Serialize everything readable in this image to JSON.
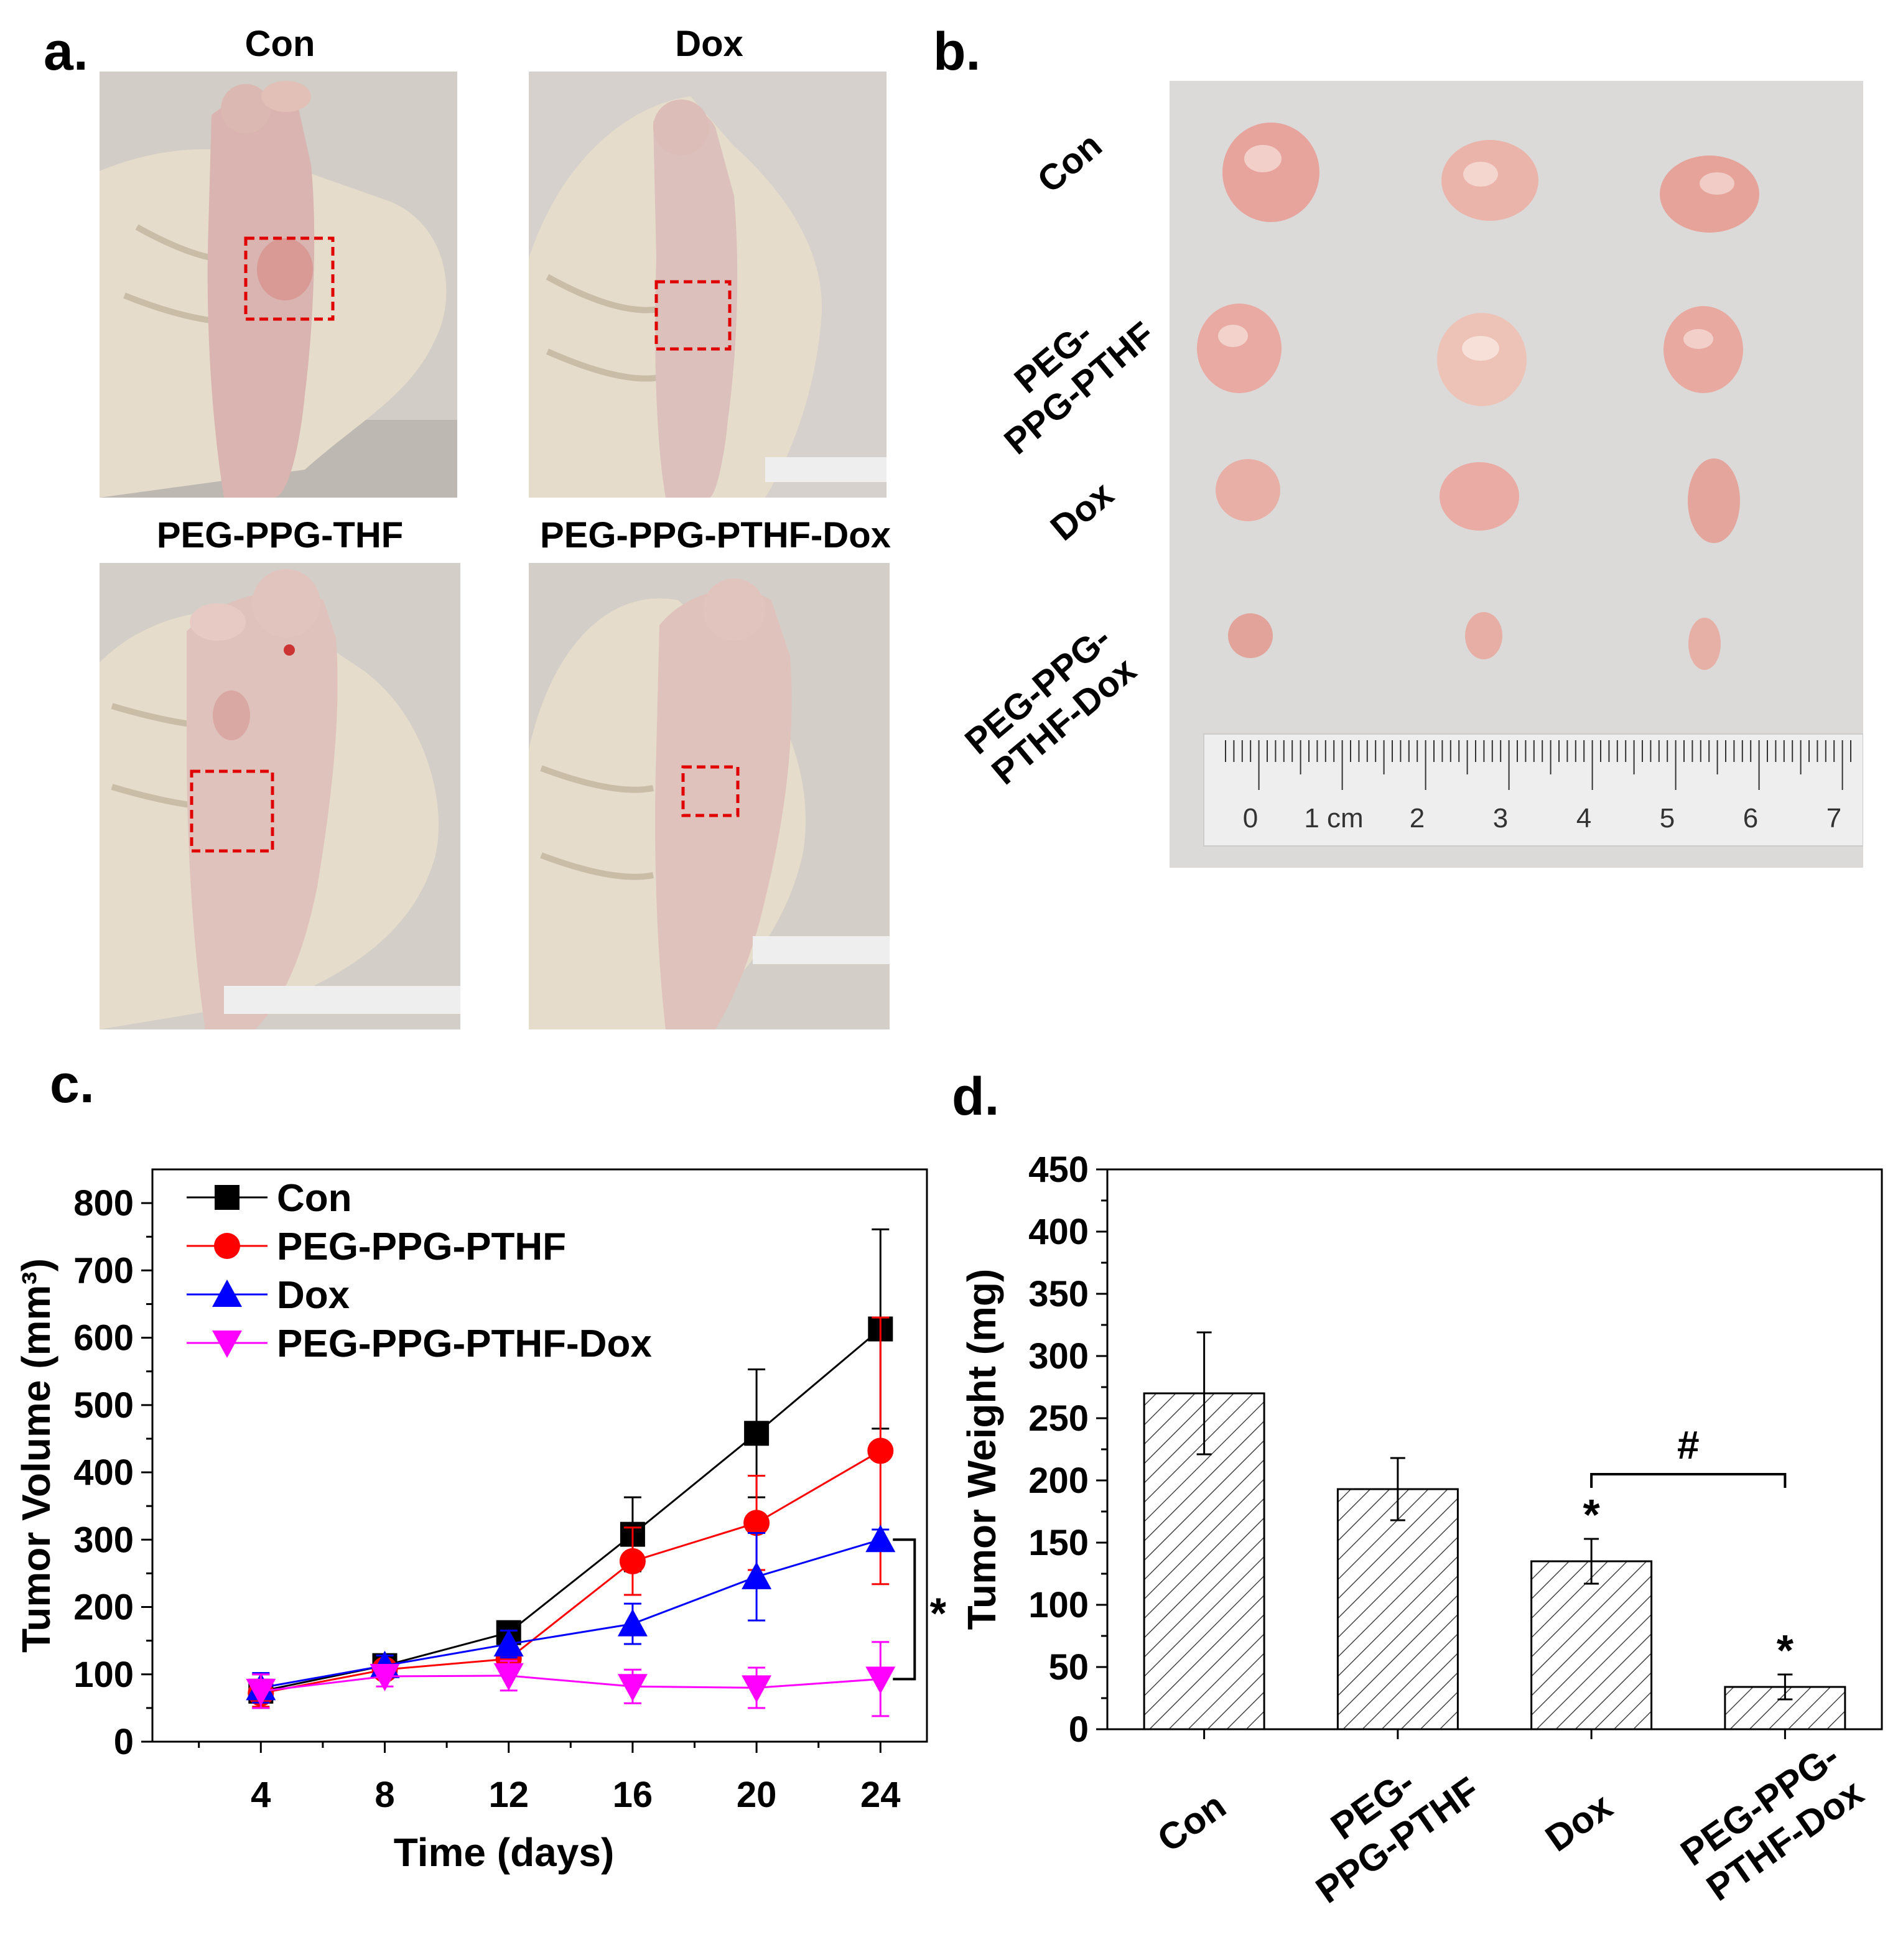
{
  "panel_a": {
    "letter": "a.",
    "photos": [
      {
        "title": "Con"
      },
      {
        "title": "Dox"
      },
      {
        "title": "PEG-PPG-THF"
      },
      {
        "title": "PEG-PPG-PTHF-Dox"
      }
    ]
  },
  "panel_b": {
    "letter": "b.",
    "row_labels": [
      {
        "lines": [
          "Con"
        ]
      },
      {
        "lines": [
          "PEG-",
          "PPG-PTHF"
        ]
      },
      {
        "lines": [
          "Dox"
        ]
      },
      {
        "lines": [
          "PEG-PPG-",
          "PTHF-Dox"
        ]
      }
    ],
    "ruler_labels": [
      "0",
      "1 cm",
      "2",
      "3",
      "4",
      "5",
      "6",
      "7"
    ]
  },
  "panel_c": {
    "letter": "c.",
    "significance": "*"
  },
  "panel_d": {
    "letter": "d.",
    "significance": {
      "star": "*",
      "hash": "#"
    }
  },
  "colors": {
    "con": "#000000",
    "peg_pthf": "#ff0000",
    "dox": "#0000ff",
    "peg_pthf_dox": "#ff00ff",
    "tumor": "#e8a59e",
    "glove": "#e6dccb"
  },
  "chart_data": [
    {
      "id": "c",
      "type": "line",
      "xlabel": "Time (days)",
      "ylabel": "Tumor Volume (mm³)",
      "x": [
        4,
        8,
        12,
        16,
        20,
        24
      ],
      "xlim": [
        0.5,
        25.5
      ],
      "ylim": [
        0,
        850
      ],
      "xticks": [
        4,
        8,
        12,
        16,
        20,
        24
      ],
      "yticks": [
        0,
        100,
        200,
        300,
        400,
        500,
        600,
        700,
        800
      ],
      "legend": "top-left",
      "series": [
        {
          "name": "Con",
          "marker": "square",
          "color": "#000000",
          "values": [
            75,
            113,
            162,
            308,
            458,
            613
          ],
          "errors": [
            25,
            12,
            15,
            55,
            95,
            148
          ]
        },
        {
          "name": "PEG-PPG-PTHF",
          "marker": "circle",
          "color": "#ff0000",
          "values": [
            72,
            107,
            123,
            268,
            325,
            432
          ],
          "errors": [
            20,
            12,
            15,
            50,
            70,
            198
          ]
        },
        {
          "name": "Dox",
          "marker": "triangle-up",
          "color": "#0000ff",
          "values": [
            80,
            113,
            145,
            175,
            245,
            300
          ],
          "errors": [
            22,
            15,
            20,
            30,
            65,
            15
          ]
        },
        {
          "name": "PEG-PPG-PTHF-Dox",
          "marker": "triangle-down",
          "color": "#ff00ff",
          "values": [
            75,
            97,
            98,
            82,
            80,
            93
          ],
          "errors": [
            25,
            15,
            22,
            25,
            30,
            55
          ]
        }
      ]
    },
    {
      "id": "d",
      "type": "bar",
      "xlabel": "",
      "ylabel": "Tumor Weight (mg)",
      "categories": [
        [
          "Con"
        ],
        [
          "PEG-",
          "PPG-PTHF"
        ],
        [
          "Dox"
        ],
        [
          "PEG-PPG-",
          "PTHF-Dox"
        ]
      ],
      "values": [
        270,
        193,
        135,
        34
      ],
      "errors": [
        49,
        25,
        18,
        10
      ],
      "ylim": [
        0,
        450
      ],
      "yticks": [
        0,
        50,
        100,
        150,
        200,
        250,
        300,
        350,
        400,
        450
      ],
      "fill": "hatched"
    }
  ]
}
